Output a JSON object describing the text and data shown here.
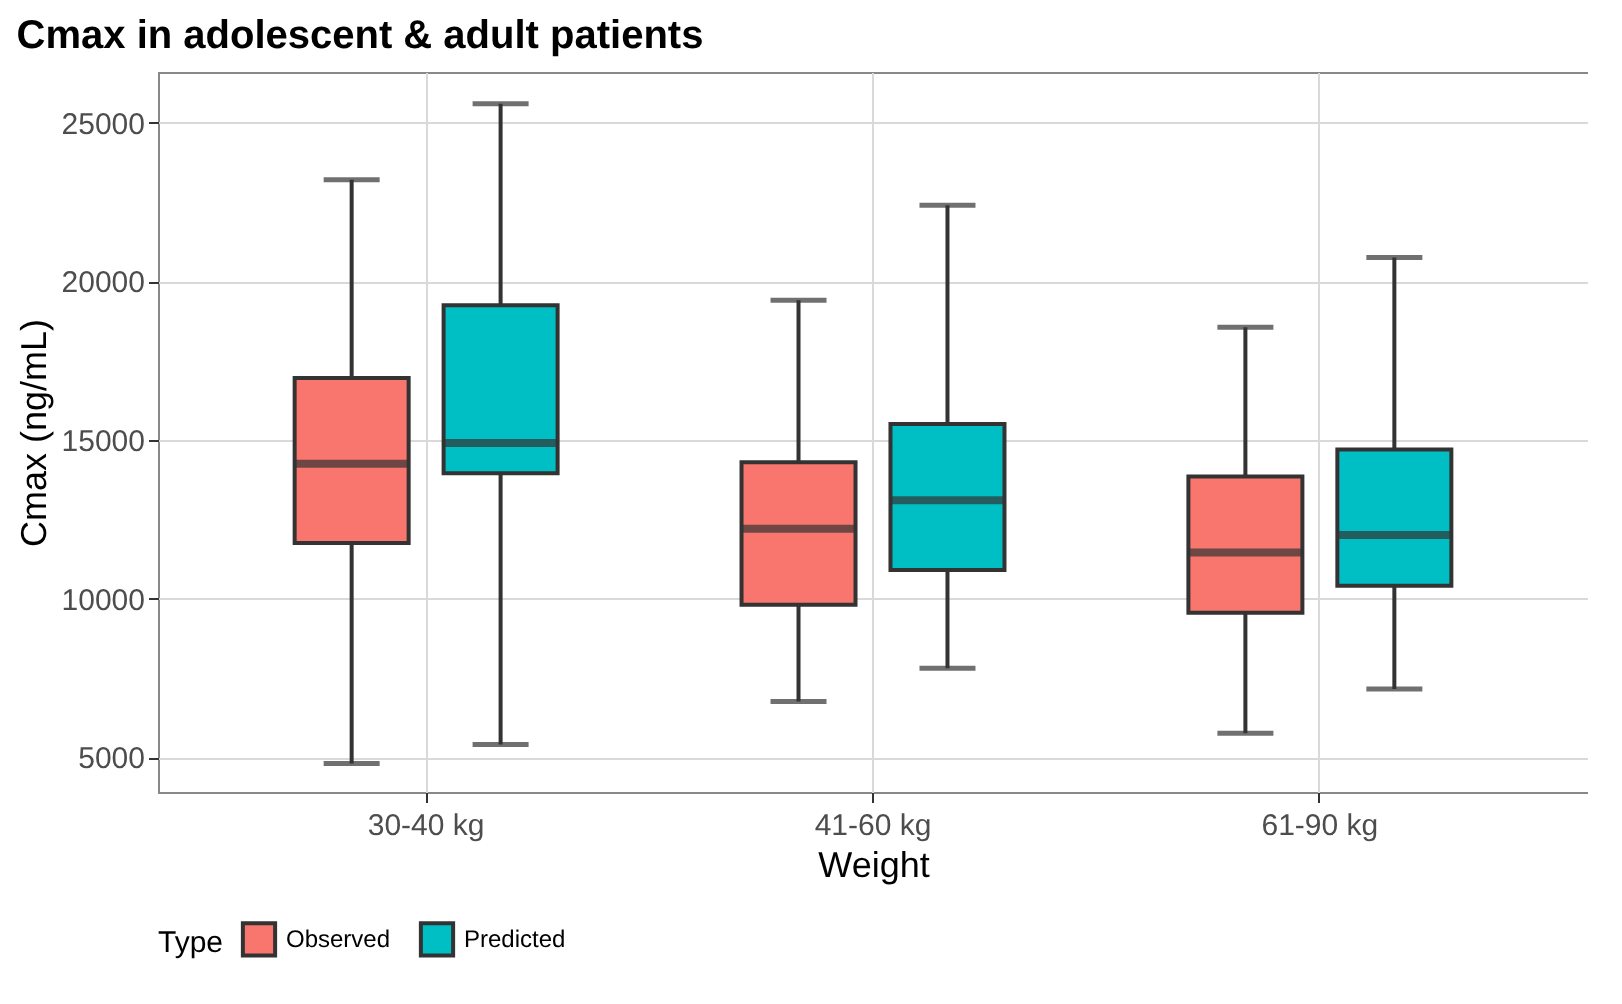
{
  "chart_data": {
    "type": "box",
    "title": "Cmax in adolescent & adult patients",
    "xlabel": "Weight",
    "ylabel": "Cmax (ng/mL)",
    "legend_title": "Type",
    "categories": [
      "30-40 kg",
      "41-60 kg",
      "61-90 kg"
    ],
    "series": [
      {
        "name": "Observed",
        "color": "#f8766d",
        "boxes": [
          {
            "low": 4800,
            "q1": 11750,
            "median": 14250,
            "q3": 16950,
            "high": 23200
          },
          {
            "low": 6750,
            "q1": 9800,
            "median": 12200,
            "q3": 14300,
            "high": 19400
          },
          {
            "low": 5750,
            "q1": 9550,
            "median": 11450,
            "q3": 13850,
            "high": 18550
          }
        ]
      },
      {
        "name": "Predicted",
        "color": "#00bfc4",
        "boxes": [
          {
            "low": 5400,
            "q1": 13950,
            "median": 14900,
            "q3": 19250,
            "high": 25600
          },
          {
            "low": 7800,
            "q1": 10900,
            "median": 13100,
            "q3": 15500,
            "high": 22400
          },
          {
            "low": 7150,
            "q1": 10400,
            "median": 12000,
            "q3": 14700,
            "high": 20750
          }
        ]
      }
    ],
    "ylim": [
      3900,
      26600
    ],
    "yticks": [
      5000,
      10000,
      15000,
      20000,
      25000
    ],
    "grid": true,
    "legend": "bottom"
  }
}
